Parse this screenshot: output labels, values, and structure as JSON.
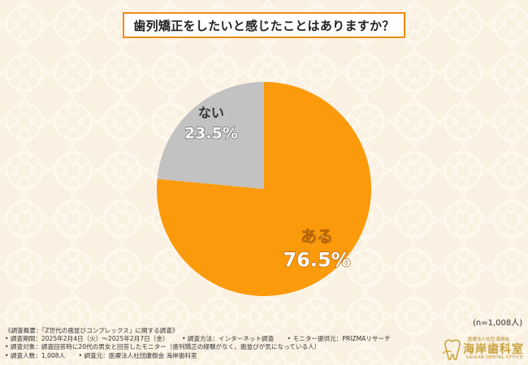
{
  "title": "歯列矯正をしたいと感じたことはありますか？",
  "n_label": "(n=1,008人)",
  "chart_data": {
    "type": "pie",
    "slices": [
      {
        "label": "ある",
        "value": 76.5,
        "value_label": "76.5%",
        "color": "#fb9a0a"
      },
      {
        "label": "ない",
        "value": 23.5,
        "value_label": "23.5%",
        "color": "#c2c2c2"
      }
    ]
  },
  "footer": {
    "line1": "《調査概要：「Z世代の歯並びコンプレックス」に関する調査》",
    "period": "• 調査期間：2025年2月4日（火）～2025年2月7日（金）",
    "method": "• 調査方法：インターネット調査",
    "monitor": "• モニター提供元：PRIZMAリサーチ",
    "target": "• 調査対象：調査回答時に20代の男女と回答したモニター（歯列矯正の経験がなく、歯並びが気になっている人）",
    "count": "• 調査人数：1,008人",
    "org": "• 調査元：医療法人社団康樹会 海岸歯科室"
  },
  "logo": {
    "top": "医療法人社団 康樹会",
    "main": "海岸歯科室",
    "sub": "KAIGAN DENTAL OFFICE"
  }
}
